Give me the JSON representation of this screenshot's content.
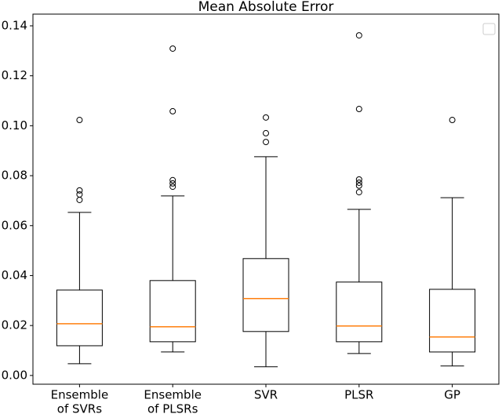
{
  "chart_data": {
    "type": "box",
    "title": "Mean Absolute Error",
    "categories": [
      [
        "Ensemble",
        "of SVRs"
      ],
      [
        "Ensemble",
        "of PLSRs"
      ],
      [
        "SVR"
      ],
      [
        "PLSR"
      ],
      [
        "GP"
      ]
    ],
    "boxes": [
      {
        "whislo": 0.0047,
        "q1": 0.0119,
        "med": 0.0207,
        "q3": 0.0342,
        "whishi": 0.0653,
        "fliers": [
          0.1023,
          0.0741,
          0.0725,
          0.0703
        ]
      },
      {
        "whislo": 0.0094,
        "q1": 0.0135,
        "med": 0.0195,
        "q3": 0.038,
        "whishi": 0.0719,
        "fliers": [
          0.1309,
          0.1058,
          0.0782,
          0.0769,
          0.0756
        ]
      },
      {
        "whislo": 0.0035,
        "q1": 0.0176,
        "med": 0.0308,
        "q3": 0.0468,
        "whishi": 0.0876,
        "fliers": [
          0.1033,
          0.097,
          0.0935
        ]
      },
      {
        "whislo": 0.0088,
        "q1": 0.0135,
        "med": 0.0198,
        "q3": 0.0374,
        "whishi": 0.0665,
        "fliers": [
          0.1362,
          0.1067,
          0.0785,
          0.0772,
          0.076,
          0.0734
        ]
      },
      {
        "whislo": 0.0038,
        "q1": 0.0094,
        "med": 0.0154,
        "q3": 0.0345,
        "whishi": 0.0712,
        "fliers": [
          0.1023
        ]
      }
    ],
    "box_color": "#000000",
    "median_color": "#ff7f0e",
    "ylim": [
      -0.0035,
      0.1447
    ],
    "yticks": [
      {
        "value": 0,
        "label": "0.00"
      },
      {
        "value": 0.02,
        "label": "0.02"
      },
      {
        "value": 0.04,
        "label": "0.04"
      },
      {
        "value": 0.06,
        "label": "0.06"
      },
      {
        "value": 0.08,
        "label": "0.08"
      },
      {
        "value": 0.1,
        "label": "0.10"
      },
      {
        "value": 0.12,
        "label": "0.12"
      },
      {
        "value": 0.14,
        "label": "0.14"
      }
    ]
  }
}
